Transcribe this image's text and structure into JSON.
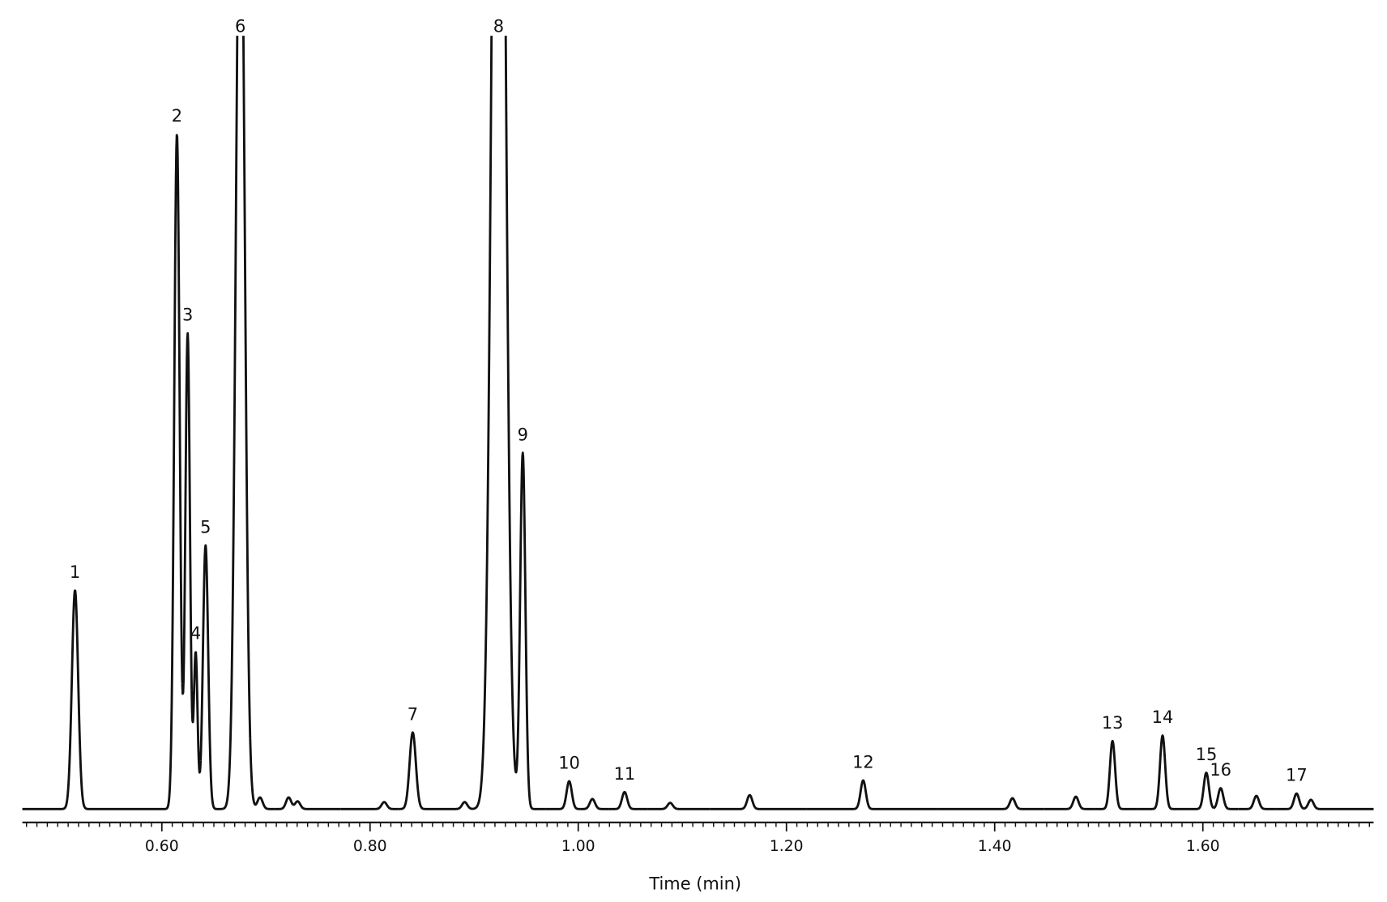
{
  "chart_data": {
    "type": "chromatogram",
    "x_label": "Time (min)",
    "xlim": [
      0.466,
      1.764
    ],
    "ylim": [
      0,
      100
    ],
    "xticks": [
      {
        "value": 0.6,
        "label": "0.60"
      },
      {
        "value": 0.8,
        "label": "0.80"
      },
      {
        "value": 1.0,
        "label": "1.00"
      },
      {
        "value": 1.2,
        "label": "1.20"
      },
      {
        "value": 1.4,
        "label": "1.40"
      },
      {
        "value": 1.6,
        "label": "1.60"
      }
    ],
    "minor_tick_step": 0.01,
    "color": "#111111",
    "series": [
      {
        "labels": [
          "1",
          "2",
          "3",
          "4",
          "5",
          "6",
          null,
          null,
          null,
          null,
          "7",
          null,
          "8",
          "9",
          "10",
          null,
          "11",
          null,
          null,
          "12",
          null,
          null,
          "13",
          "14",
          "15",
          "16",
          null,
          "17",
          null
        ],
        "x": [
          0.5166,
          0.6145,
          0.6248,
          0.6325,
          0.642,
          0.6754,
          0.6943,
          0.7218,
          0.7304,
          0.8136,
          0.841,
          0.8909,
          0.9235,
          0.9467,
          0.9913,
          1.0136,
          1.0445,
          1.0883,
          1.1647,
          1.2737,
          1.4171,
          1.478,
          1.5132,
          1.5613,
          1.6033,
          1.6171,
          1.6514,
          1.69,
          1.7038
        ],
        "values": [
          28.3,
          87.3,
          61.5,
          20.2,
          34.1,
          130,
          1.5,
          1.5,
          1.0,
          0.9,
          9.9,
          0.9,
          200,
          46,
          3.6,
          1.3,
          2.2,
          0.8,
          1.8,
          3.7,
          1.4,
          1.6,
          8.8,
          9.5,
          4.7,
          2.7,
          1.7,
          2.0,
          1.2
        ],
        "widths": [
          0.003,
          0.0026,
          0.0022,
          0.0018,
          0.0025,
          0.0041,
          0.0025,
          0.0025,
          0.0025,
          0.0025,
          0.003,
          0.0025,
          0.0058,
          0.0025,
          0.0025,
          0.0025,
          0.0025,
          0.0025,
          0.0025,
          0.0025,
          0.0025,
          0.0025,
          0.0025,
          0.0025,
          0.0025,
          0.0025,
          0.0025,
          0.0025,
          0.0025
        ]
      }
    ]
  }
}
